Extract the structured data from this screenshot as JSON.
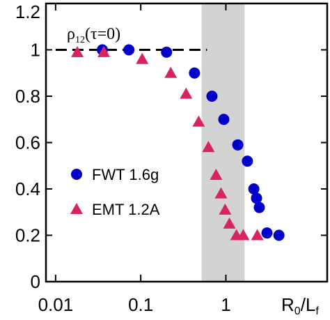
{
  "chart_data": {
    "type": "scatter",
    "annotation": [
      "ρ",
      "12",
      "(τ=0)"
    ],
    "x_label": [
      "R",
      "0",
      "/L",
      "f"
    ],
    "xscale": "log",
    "xlim": [
      0.0077,
      15.5
    ],
    "ylim": [
      0,
      1.2
    ],
    "xticks": [
      0.01,
      0.1,
      1
    ],
    "yticks": [
      0,
      0.2,
      0.4,
      0.6,
      0.8,
      1,
      1.2
    ],
    "shade_x": [
      0.52,
      1.66
    ],
    "reference_line": {
      "y": 1,
      "x": [
        0.01,
        0.6
      ]
    },
    "legend": "left",
    "series": [
      {
        "name": "FWT 1.6g",
        "color": "#0000c8",
        "marker": "circle",
        "x": [
          0.0354,
          0.0726,
          0.201,
          0.428,
          0.686,
          0.945,
          1.38,
          1.79,
          2.13,
          2.29,
          2.47,
          3.04,
          4.2
        ],
        "values": [
          1.0,
          1.0,
          0.99,
          0.9,
          0.8,
          0.7,
          0.59,
          0.52,
          0.4,
          0.36,
          0.32,
          0.21,
          0.2
        ]
      },
      {
        "name": "EMT 1.2A",
        "color": "#d8245e",
        "marker": "triangle",
        "x": [
          0.018,
          0.0368,
          0.104,
          0.225,
          0.341,
          0.479,
          0.624,
          0.767,
          0.877,
          0.98,
          1.1,
          1.33,
          1.6,
          2.34
        ],
        "values": [
          0.99,
          0.99,
          0.96,
          0.9,
          0.81,
          0.69,
          0.58,
          0.46,
          0.38,
          0.31,
          0.25,
          0.2,
          0.2,
          0.2
        ]
      }
    ]
  }
}
